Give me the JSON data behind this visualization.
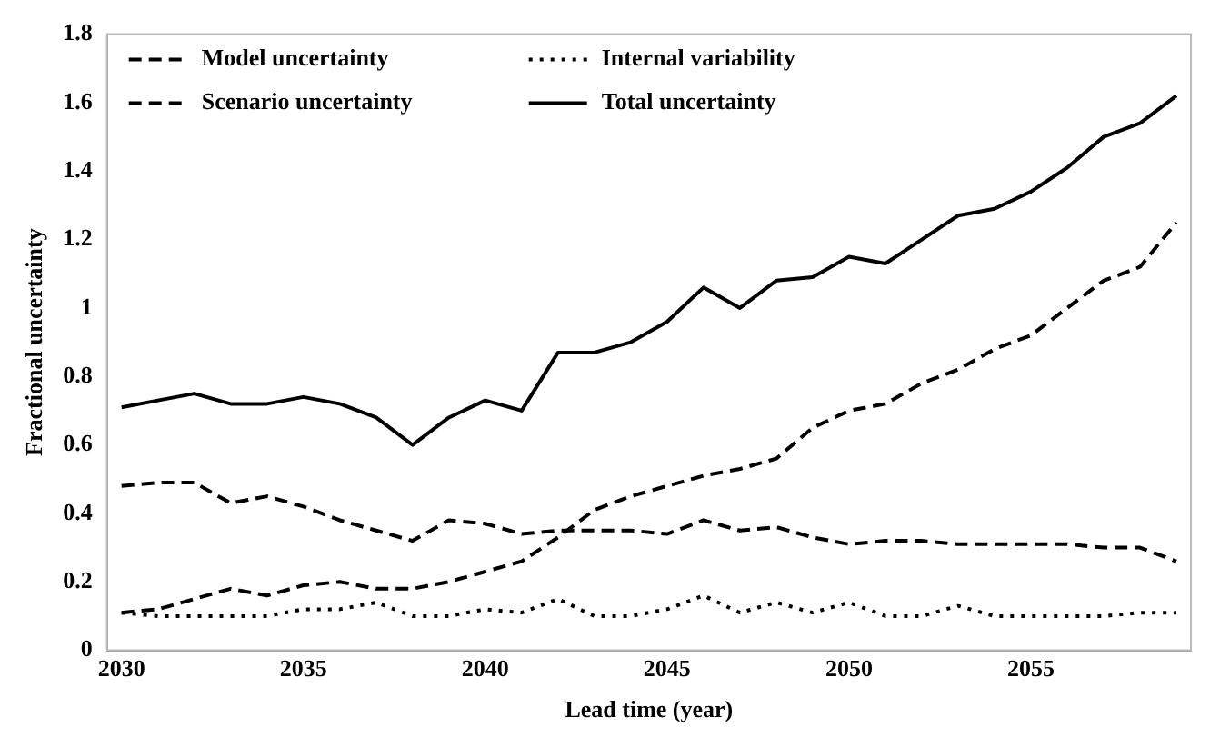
{
  "chart_data": {
    "type": "line",
    "xlabel": "Lead time (year)",
    "ylabel": "Fractional uncertainty",
    "x": [
      2030,
      2031,
      2032,
      2033,
      2034,
      2035,
      2036,
      2037,
      2038,
      2039,
      2040,
      2041,
      2042,
      2043,
      2044,
      2045,
      2046,
      2047,
      2048,
      2049,
      2050,
      2051,
      2052,
      2053,
      2054,
      2055,
      2056,
      2057,
      2058,
      2059
    ],
    "xlim": [
      2029.6,
      2059.4
    ],
    "xticks": [
      2030,
      2035,
      2040,
      2045,
      2050,
      2055
    ],
    "ylim": [
      0,
      1.8
    ],
    "yticks": [
      0,
      0.2,
      0.4,
      0.6,
      0.8,
      1,
      1.2,
      1.4,
      1.6,
      1.8
    ],
    "grid": false,
    "legend": "top left",
    "marker": "none",
    "series": [
      {
        "name": "Model uncertainty",
        "color": "#000000",
        "line_style": "dashed",
        "values": [
          0.48,
          0.49,
          0.49,
          0.43,
          0.45,
          0.42,
          0.38,
          0.35,
          0.32,
          0.38,
          0.37,
          0.34,
          0.35,
          0.35,
          0.35,
          0.34,
          0.38,
          0.35,
          0.36,
          0.33,
          0.31,
          0.32,
          0.32,
          0.31,
          0.31,
          0.31,
          0.31,
          0.3,
          0.3,
          0.26
        ]
      },
      {
        "name": "Internal variability",
        "color": "#000000",
        "line_style": "dotted",
        "values": [
          0.11,
          0.1,
          0.1,
          0.1,
          0.1,
          0.12,
          0.12,
          0.14,
          0.1,
          0.1,
          0.12,
          0.11,
          0.15,
          0.1,
          0.1,
          0.12,
          0.16,
          0.11,
          0.14,
          0.11,
          0.14,
          0.1,
          0.1,
          0.13,
          0.1,
          0.1,
          0.1,
          0.1,
          0.11,
          0.11
        ]
      },
      {
        "name": "Scenario uncertainty",
        "color": "#000000",
        "line_style": "dashed",
        "values": [
          0.11,
          0.12,
          0.15,
          0.18,
          0.16,
          0.19,
          0.2,
          0.18,
          0.18,
          0.2,
          0.23,
          0.26,
          0.33,
          0.41,
          0.45,
          0.48,
          0.51,
          0.53,
          0.56,
          0.65,
          0.7,
          0.72,
          0.78,
          0.82,
          0.88,
          0.92,
          1.0,
          1.08,
          1.12,
          1.25
        ]
      },
      {
        "name": "Total uncertainty",
        "color": "#000000",
        "line_style": "solid",
        "values": [
          0.71,
          0.73,
          0.75,
          0.72,
          0.72,
          0.74,
          0.72,
          0.68,
          0.6,
          0.68,
          0.73,
          0.7,
          0.87,
          0.87,
          0.9,
          0.96,
          1.06,
          1.0,
          1.08,
          1.09,
          1.15,
          1.13,
          1.2,
          1.27,
          1.29,
          1.34,
          1.41,
          1.5,
          1.54,
          1.62
        ]
      }
    ]
  }
}
